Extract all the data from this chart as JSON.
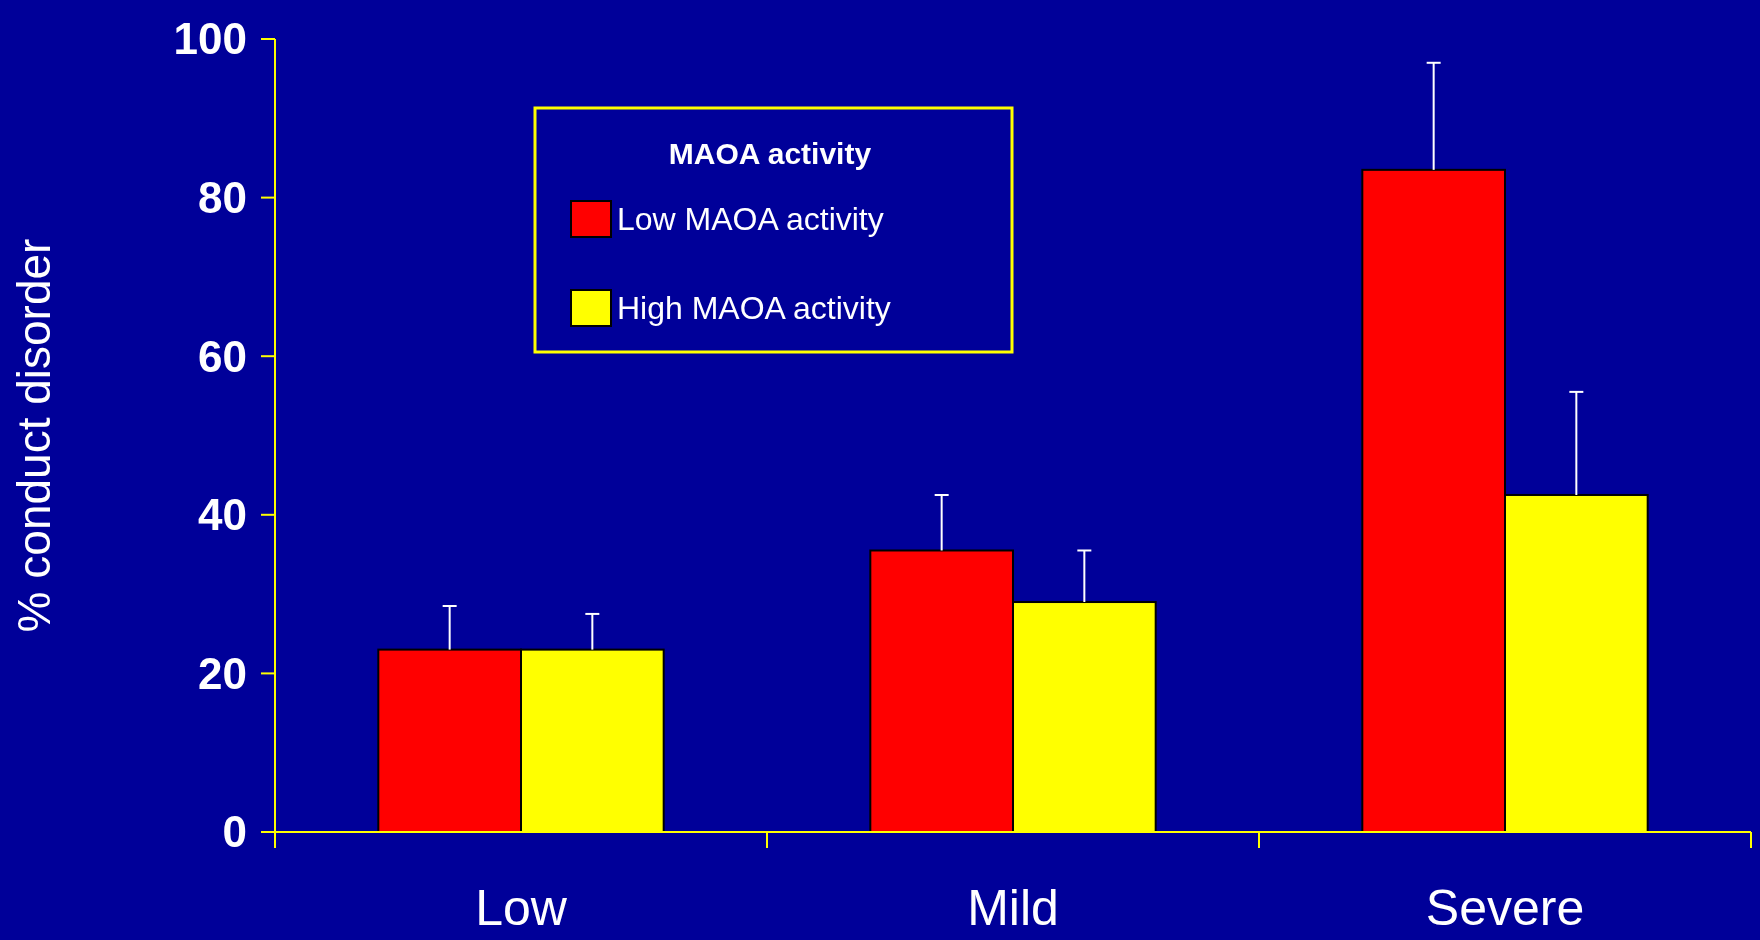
{
  "chart_data": {
    "type": "bar",
    "ylabel": "% conduct disorder",
    "legend_title": "MAOA activity",
    "categories": [
      "Low",
      "Mild",
      "Severe"
    ],
    "series": [
      {
        "name": "Low MAOA activity",
        "color": "#ff0000",
        "values": [
          23,
          35.5,
          83.5
        ],
        "errors": [
          [
            23,
            28.5
          ],
          [
            35.5,
            42.5
          ],
          [
            83.5,
            97
          ]
        ]
      },
      {
        "name": "High MAOA activity",
        "color": "#ffff00",
        "values": [
          23,
          29,
          42.5
        ],
        "errors": [
          [
            23,
            27.5
          ],
          [
            29,
            35.5
          ],
          [
            42.5,
            55.5
          ]
        ]
      }
    ],
    "ylim": [
      0,
      100
    ],
    "yticks": [
      0,
      20,
      40,
      60,
      80,
      100
    ],
    "grid": false,
    "legend": "top left"
  }
}
